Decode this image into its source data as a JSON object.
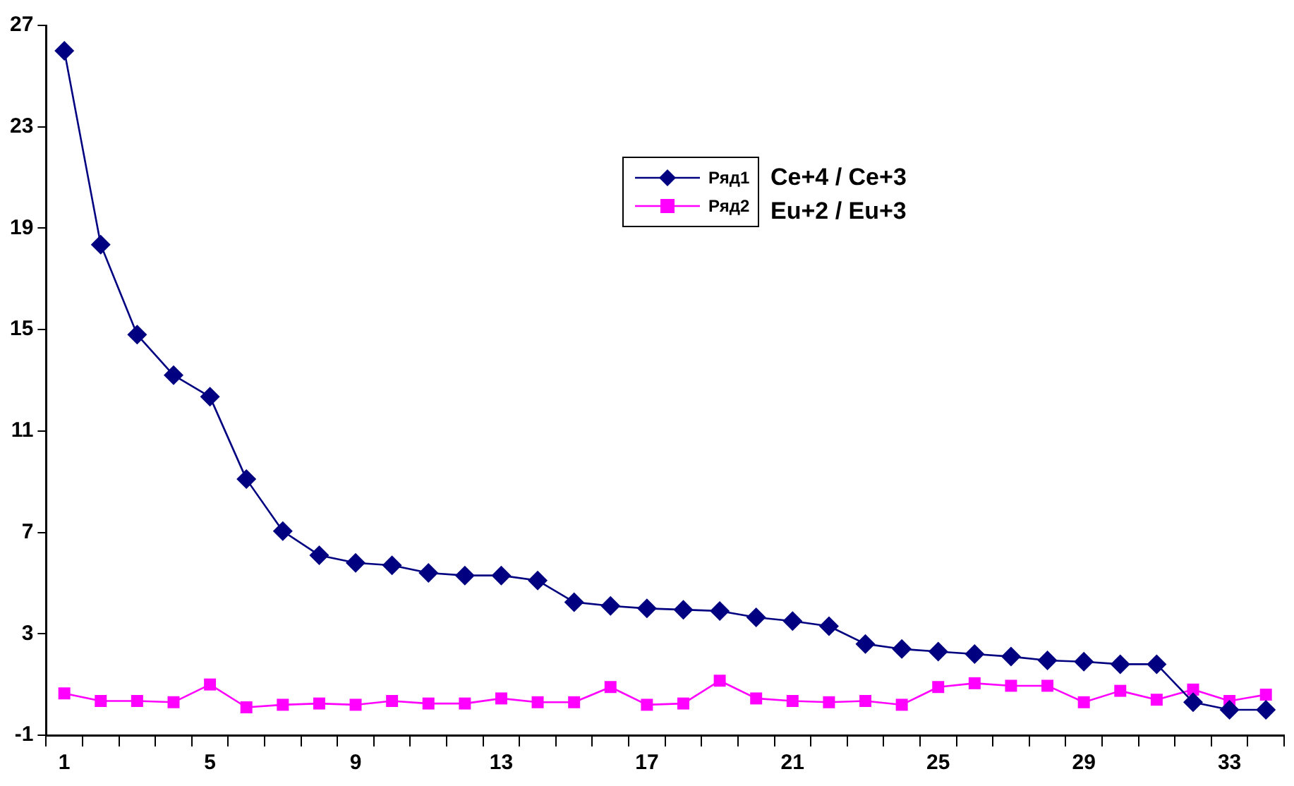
{
  "chart_data": {
    "type": "line",
    "categories": [
      "1",
      null,
      null,
      null,
      "5",
      null,
      null,
      null,
      "9",
      null,
      null,
      null,
      "13",
      null,
      null,
      null,
      "17",
      null,
      null,
      null,
      "21",
      null,
      null,
      null,
      "25",
      null,
      null,
      null,
      "29",
      null,
      null,
      null,
      "33",
      null
    ],
    "series": [
      {
        "name": "Ряд1",
        "color": "#000080",
        "marker": "diamond",
        "values": [
          26.0,
          18.35,
          14.8,
          13.2,
          12.35,
          9.1,
          7.05,
          6.1,
          5.8,
          5.7,
          5.4,
          5.3,
          5.3,
          5.1,
          4.25,
          4.1,
          4.0,
          3.95,
          3.9,
          3.65,
          3.5,
          3.3,
          2.6,
          2.4,
          2.3,
          2.2,
          2.1,
          1.95,
          1.9,
          1.8,
          1.8,
          0.3,
          0.0,
          0.0
        ]
      },
      {
        "name": "Ряд2",
        "color": "#ff00ff",
        "marker": "square",
        "values": [
          0.65,
          0.35,
          0.35,
          0.3,
          1.0,
          0.1,
          0.2,
          0.25,
          0.2,
          0.35,
          0.25,
          0.25,
          0.45,
          0.3,
          0.3,
          0.9,
          0.2,
          0.25,
          1.15,
          0.45,
          0.35,
          0.3,
          0.35,
          0.2,
          0.9,
          1.05,
          0.95,
          0.95,
          0.3,
          0.75,
          0.4,
          0.8,
          0.35,
          0.6
        ]
      }
    ],
    "ylim": [
      -1,
      27
    ],
    "yticks": [
      -1,
      3,
      7,
      11,
      15,
      19,
      23,
      27
    ],
    "grid": false,
    "legend": "top",
    "annotations": [
      "Ce+4 / Ce+3",
      "Eu+2 / Eu+3"
    ]
  }
}
